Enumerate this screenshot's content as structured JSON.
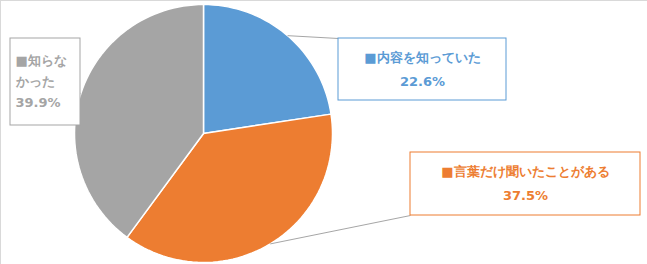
{
  "chart_data": {
    "type": "pie",
    "categories": [
      "■内容を知っていた",
      "■言葉だけ聞いたことがある",
      "■知らなかった"
    ],
    "values": [
      22.6,
      37.5,
      39.9
    ],
    "value_labels": [
      "22.6%",
      "37.5%",
      "39.9%"
    ],
    "colors": [
      "#5b9bd5",
      "#ed7d31",
      "#a5a5a5"
    ],
    "data_labels": true
  }
}
